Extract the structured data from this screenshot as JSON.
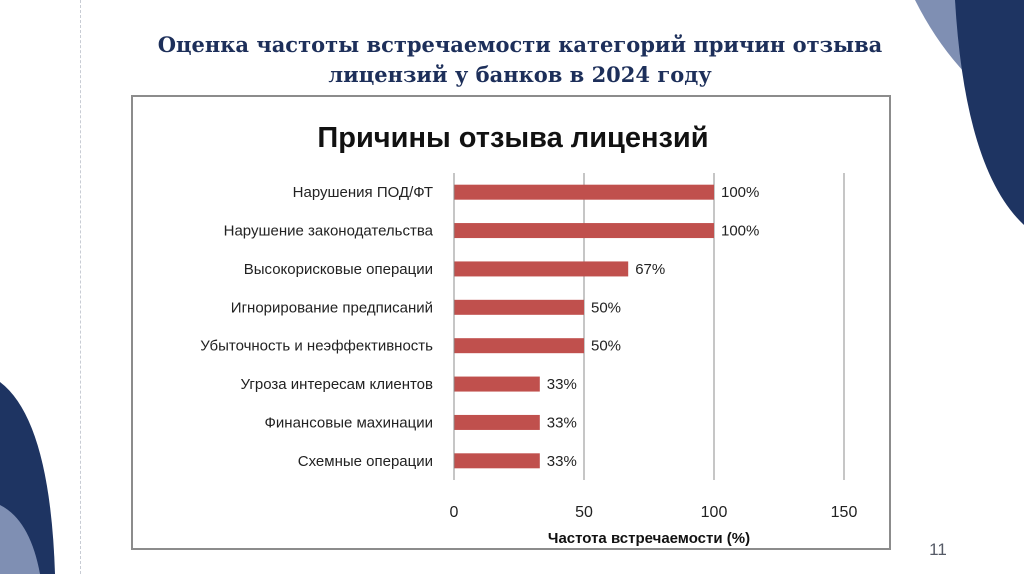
{
  "slide": {
    "title_line1": "Оценка частоты встречаемости категорий причин отзыва",
    "title_line2": "лицензий у банков в 2024 году",
    "page_number": "11",
    "accent_color": "#1d2f5a",
    "decor_color": "#1e3462",
    "decor_light_color": "#7f8fb3"
  },
  "chart_data": {
    "type": "bar",
    "orientation": "horizontal",
    "title": "Причины отзыва лицензий",
    "xlabel": "Частота встречаемости (%)",
    "ylabel": "",
    "categories": [
      "Нарушения ПОД/ФТ",
      "Нарушение законодательства",
      "Высокорисковые операции",
      "Игнорирование предписаний",
      "Убыточность и неэффективность",
      "Угроза интересам клиентов",
      "Финансовые махинации",
      "Схемные операции"
    ],
    "values": [
      100,
      100,
      67,
      50,
      50,
      33,
      33,
      33
    ],
    "data_labels": [
      "100%",
      "100%",
      "67%",
      "50%",
      "50%",
      "33%",
      "33%",
      "33%"
    ],
    "xlim": [
      0,
      150
    ],
    "xticks": [
      0,
      50,
      100,
      150
    ],
    "xtick_labels": [
      "0",
      "50",
      "100",
      "150"
    ],
    "grid": true,
    "legend": "none",
    "bar_color": "#c0504d"
  }
}
